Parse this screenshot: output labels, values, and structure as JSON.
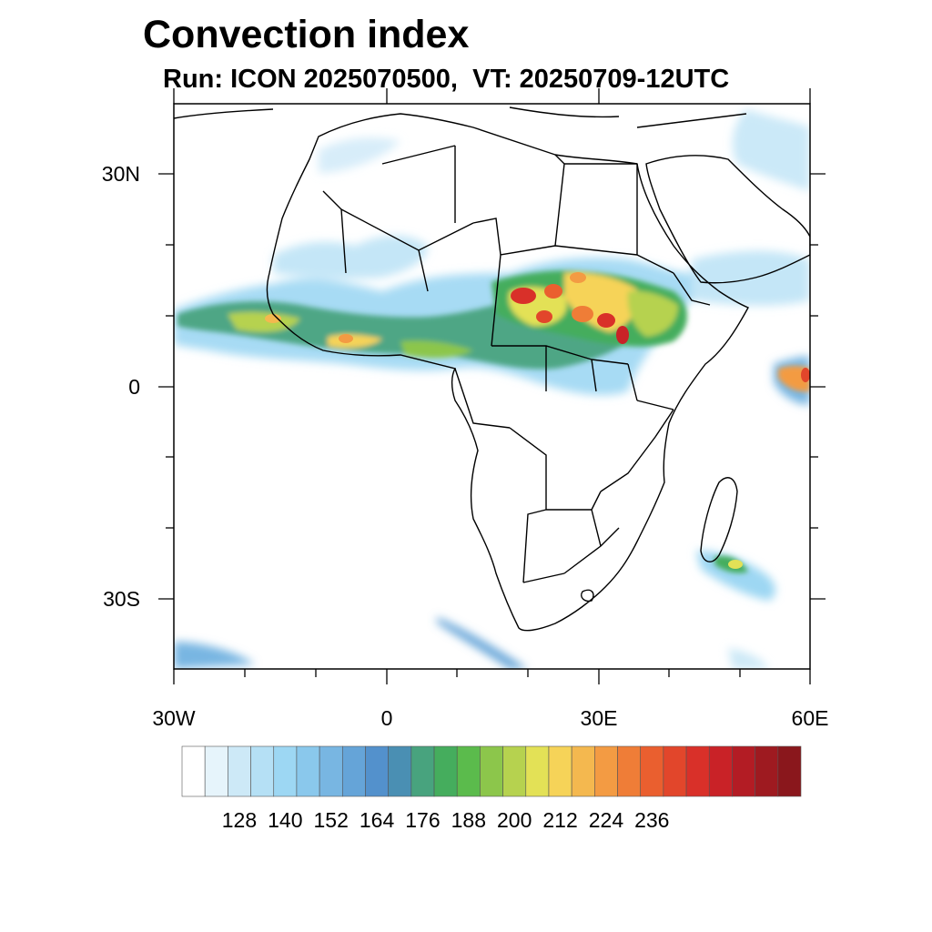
{
  "title": "Convection index",
  "subtitle": "Run: ICON 2025070500,  VT: 20250709-12UTC",
  "axes": {
    "lat_labels": [
      "30N",
      "0",
      "30S"
    ],
    "lon_labels": [
      "30W",
      "0",
      "30E",
      "60E"
    ],
    "lon_range": [
      -30,
      60
    ],
    "lat_range": [
      -40,
      40
    ]
  },
  "colorbar": {
    "labels": [
      "128",
      "140",
      "152",
      "164",
      "176",
      "188",
      "200",
      "212",
      "224",
      "236"
    ],
    "colors": [
      "#ffffff",
      "#e6f4fb",
      "#cde9f7",
      "#b5e0f5",
      "#9dd7f3",
      "#8ac8ec",
      "#78b6e2",
      "#65a4d8",
      "#5391cc",
      "#4a8fb3",
      "#48a37e",
      "#45ad5d",
      "#5bbb4c",
      "#8cc64b",
      "#b6d24f",
      "#e3e156",
      "#f6d358",
      "#f4b84f",
      "#f39b43",
      "#ef7d37",
      "#ea5f2f",
      "#e2462b",
      "#d93029",
      "#c92227",
      "#b31c24",
      "#9e1a20",
      "#8a171c"
    ]
  }
}
